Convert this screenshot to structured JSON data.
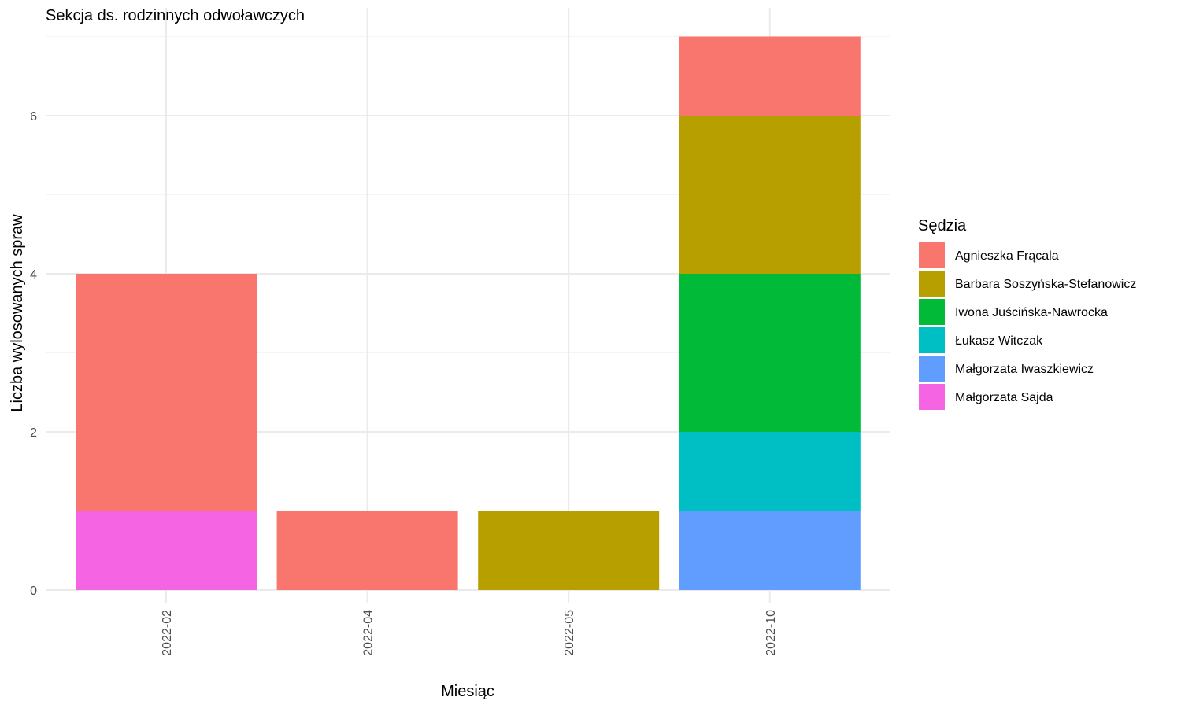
{
  "chart_data": {
    "type": "bar",
    "stacked": true,
    "title": "Sekcja ds. rodzinnych odwoławczych",
    "xlabel": "Miesiąc",
    "ylabel": "Liczba wylosowanych spraw",
    "categories": [
      "2022-02",
      "2022-04",
      "2022-05",
      "2022-10"
    ],
    "ylim": [
      0,
      7
    ],
    "yticks": [
      0,
      2,
      4,
      6
    ],
    "grid": true,
    "legend": {
      "title": "Sędzia",
      "position": "right"
    },
    "series": [
      {
        "name": "Agnieszka Frącala",
        "color": "#F8766D",
        "values": [
          3,
          1,
          0,
          1
        ]
      },
      {
        "name": "Barbara Soszyńska-Stefanowicz",
        "color": "#B79F00",
        "values": [
          0,
          0,
          1,
          2
        ]
      },
      {
        "name": "Iwona Juścińska-Nawrocka",
        "color": "#00BA38",
        "values": [
          0,
          0,
          0,
          2
        ]
      },
      {
        "name": "Łukasz Witczak",
        "color": "#00BFC4",
        "values": [
          0,
          0,
          0,
          1
        ]
      },
      {
        "name": "Małgorzata Iwaszkiewicz",
        "color": "#619CFF",
        "values": [
          0,
          0,
          0,
          1
        ]
      },
      {
        "name": "Małgorzata Sajda",
        "color": "#F564E3",
        "values": [
          1,
          0,
          0,
          0
        ]
      }
    ]
  }
}
